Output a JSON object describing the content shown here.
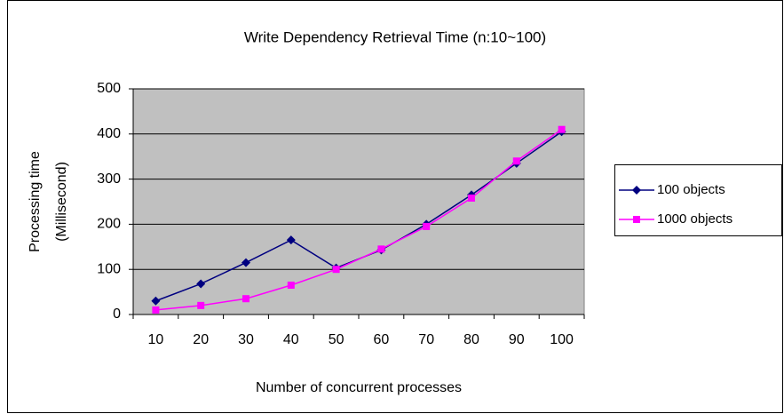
{
  "chart_data": {
    "type": "line",
    "title": "Write Dependency Retrieval Time (n:10~100)",
    "xlabel": "Number of concurrent processes",
    "ylabel": [
      "Processing time",
      "(Millisecond)"
    ],
    "categories": [
      "10",
      "20",
      "30",
      "40",
      "50",
      "60",
      "70",
      "80",
      "90",
      "100"
    ],
    "series": [
      {
        "name": "100 objects",
        "color": "#000080",
        "marker": "diamond",
        "values": [
          30,
          68,
          115,
          165,
          103,
          143,
          200,
          265,
          335,
          405
        ]
      },
      {
        "name": "1000 objects",
        "color": "#ff00ff",
        "marker": "square",
        "values": [
          10,
          20,
          35,
          65,
          100,
          145,
          195,
          258,
          340,
          410
        ]
      }
    ],
    "ylim": [
      0,
      500
    ],
    "yticks": [
      0,
      100,
      200,
      300,
      400,
      500
    ],
    "grid": true,
    "legend": "right"
  }
}
